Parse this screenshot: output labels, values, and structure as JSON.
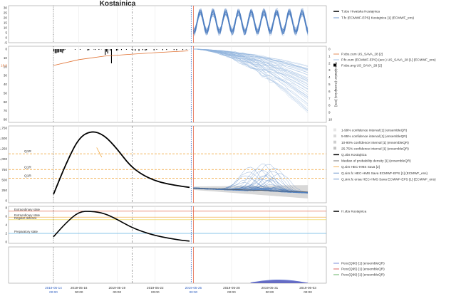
{
  "title": "Kostajnica",
  "chart_data": [
    {
      "type": "line",
      "panel": "temperature",
      "ylabel": "",
      "ylim": [
        -5,
        32
      ],
      "yticks": [
        "30",
        "25",
        "20",
        "15",
        "10",
        "5",
        "0",
        "-5"
      ],
      "series": [
        {
          "name": "T.obs Hrvatska Kostajnica",
          "color": "#000000",
          "x": [],
          "values": []
        },
        {
          "name": "T.fc (ECMWF-EPS) Kostajnica [1]  (ECMWF_ens)",
          "color": "#4f7fc0",
          "note": "ensemble spread 2019-05-25 to 2019-06-03, approx 5–27 °C with diurnal cycles"
        }
      ],
      "legend": [
        "T.obs Hrvatska Kostajnica",
        "T.fc (ECMWF-EPS) Kostajnica [1]  (ECMWF_ens)"
      ]
    },
    {
      "type": "line",
      "panel": "precipitation",
      "ylabel": "Precipitation (Kostajnica) [mm]",
      "ylim_left": [
        0,
        80
      ],
      "yticks_left": [
        "0",
        "10",
        "20",
        "30",
        "40",
        "50",
        "60",
        "70",
        "80"
      ],
      "yticks_right": [
        "0",
        "1",
        "2",
        "3",
        "4",
        "5",
        "6",
        "7",
        "8",
        "9",
        "10"
      ],
      "highlight_tick": "18.6",
      "series": [
        {
          "name": "P.obs.cum US_SAVA_28 [2]",
          "color": "#e07030",
          "x": [
            "2019-05-14",
            "2019-05-16",
            "2019-05-18",
            "2019-05-20",
            "2019-05-22",
            "2019-05-24.6"
          ],
          "values": [
            18.6,
            12,
            8,
            6,
            4,
            2
          ]
        },
        {
          "name": "P.fc.cum (ECMWF-EPS) (acc.) US_SAVA_28 [1]  (ECMWF_ens)",
          "color": "#8fb2dc",
          "note": "cumulative ensemble from 0 at 2019-05-25 fanning to 20–75 mm by 2019-06-03"
        },
        {
          "name": "P.obs.avg US_SAVA_28 [2]",
          "color": "#000000",
          "note": "daily bars, max approx 1.5 mm/h, largest near 2019-05-14 and 2019-05-17"
        }
      ],
      "legend": [
        "P.obs.cum US_SAVA_28 [2]",
        "P.fc.cum (ECMWF-EPS) (acc.) US_SAVA_28 [1]  (ECMWF_ens)",
        "P.obs.avg US_SAVA_28 [2]"
      ]
    },
    {
      "type": "line",
      "panel": "discharge",
      "ylabel": "",
      "ylim": [
        0,
        1750
      ],
      "yticks": [
        "1,750",
        "1,500",
        "1,250",
        "1,000",
        "750",
        "500",
        "250",
        "0"
      ],
      "thresholds": [
        {
          "label": "Q1R",
          "value": 1130,
          "color": "#f0a030"
        },
        {
          "label": "Q1R",
          "value": 750,
          "color": "#f0a030"
        },
        {
          "label": "Q1R",
          "value": 540,
          "color": "#f0a030"
        }
      ],
      "series": [
        {
          "name": "Q.obs Kostajnica",
          "color": "#000000",
          "x": [
            "2019-05-14",
            "2019-05-15",
            "2019-05-16",
            "2019-05-17",
            "2019-05-18",
            "2019-05-19",
            "2019-05-20",
            "2019-05-21",
            "2019-05-22",
            "2019-05-23",
            "2019-05-24",
            "2019-05-24.7"
          ],
          "values": [
            150,
            900,
            1520,
            1690,
            1580,
            1250,
            850,
            620,
            480,
            400,
            350,
            320
          ]
        },
        {
          "name": "Q.sim HEC-HMS Sava [2]",
          "color": "#f0a030",
          "x": [
            "2019-05-17.4",
            "2019-05-17.8"
          ],
          "values": [
            1280,
            1050
          ]
        },
        {
          "name": "Q.sim.fc HEC-HMS Sava ECMWF-EPS [1]  (ECMWF_ens)",
          "color": "#4f7fc0",
          "note": "ensemble 2019-05-25 to 2019-06-03, range approx 100–700"
        },
        {
          "name": "Median of probability density [1]  (ensembleQR)",
          "color": "#555555"
        }
      ],
      "legend": [
        "1-99% confidence interval [1]  (ensembleQR)",
        "5-95% confidence interval [1]  (ensembleQR)",
        "10-90% confidence interval [1]  (ensembleQR)",
        "25-75% confidence interval [1]  (ensembleQR)",
        "Q.obs Kostajnica",
        "Median of probability density [1]  (ensembleQR)",
        "Q.sim HEC-HMS Sava [2]",
        "Q.sim.fc HEC-HMS Sava ECMWF-EPS [1]  (ECMWF_ens)",
        "Q.sim.fc ensa HEC-HMS Sava ECMWF-EPS [1]  (ECMWF_ens)"
      ]
    },
    {
      "type": "line",
      "panel": "water level",
      "ylim": [
        0,
        8
      ],
      "yticks": [
        "8",
        "6",
        "4",
        "2",
        "0"
      ],
      "thresholds": [
        {
          "label": "Extraordinary state",
          "value": 7.2,
          "color": "#e05030"
        },
        {
          "label": "Extraordinary state",
          "value": 5.8,
          "color": "#f0a030"
        },
        {
          "label": "Regular defence",
          "value": 5.2,
          "color": "#e8d040"
        },
        {
          "label": "Preparatory state",
          "value": 2.0,
          "color": "#60b0e0"
        }
      ],
      "series": [
        {
          "name": "H.obs Kostajnica",
          "color": "#000000",
          "x": [
            "2019-05-14",
            "2019-05-15",
            "2019-05-16",
            "2019-05-17",
            "2019-05-18",
            "2019-05-19",
            "2019-05-20",
            "2019-05-21",
            "2019-05-22",
            "2019-05-23",
            "2019-05-24",
            "2019-05-24.7"
          ],
          "values": [
            1.2,
            4.5,
            7.1,
            7.2,
            6.7,
            5.3,
            3.6,
            2.4,
            1.5,
            0.9,
            0.4,
            0.2
          ]
        }
      ],
      "legend": [
        "H.obs Kostajnica"
      ]
    },
    {
      "type": "area",
      "panel": "exceedance",
      "series": [
        {
          "name": "Pexc(Q90) [1]  (ensembleQR)",
          "color": "#5a6fd0"
        },
        {
          "name": "Pexc(Q95) [1]  (ensembleQR)",
          "color": "#d04040"
        },
        {
          "name": "Pexc(Q99) [1]  (ensembleQR)",
          "color": "#40a040"
        }
      ],
      "legend": [
        "Pexc(Q90) [1]  (ensembleQR)",
        "Pexc(Q95) [1]  (ensembleQR)",
        "Pexc(Q99) [1]  (ensembleQR)"
      ]
    }
  ],
  "xaxis": {
    "ticks": [
      {
        "date": "2019-05-14",
        "time": "00:00"
      },
      {
        "date": "2019-05-16",
        "time": "00:00"
      },
      {
        "date": "2019-05-19",
        "time": "00:00"
      },
      {
        "date": "2019-05-22",
        "time": "00:00"
      },
      {
        "date": "2019-05-25",
        "time": "00:00"
      },
      {
        "date": "2019-05-28",
        "time": "00:00"
      },
      {
        "date": "2019-05-31",
        "time": "00:00"
      },
      {
        "date": "2019-06-03",
        "time": "00:00"
      }
    ]
  },
  "colors": {
    "obs": "#000000",
    "ensemble": "#4f7fc0",
    "threshold": "#f0a030",
    "forecast_start": "#e05030",
    "now_marker": "#3060c0"
  }
}
